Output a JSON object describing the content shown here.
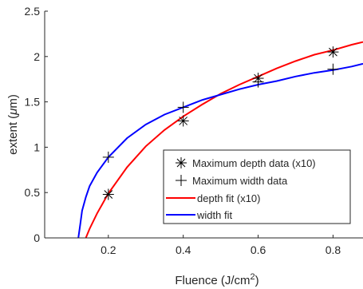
{
  "chart_data": {
    "type": "scatter",
    "xlabel": "Fluence (J/cm",
    "xlabel_sup": "2",
    "xlabel_close": ")",
    "ylabel_prefix": "extent (",
    "ylabel_mu": "μ",
    "ylabel_suffix": "m)",
    "xlim": [
      0.03,
      0.88
    ],
    "ylim": [
      0,
      2.5
    ],
    "x_ticks": [
      0.2,
      0.4,
      0.6,
      0.8
    ],
    "x_tick_labels": [
      "0.2",
      "0.4",
      "0.6",
      "0.8"
    ],
    "y_ticks": [
      0,
      0.5,
      1,
      1.5,
      2,
      2.5
    ],
    "y_tick_labels": [
      "0",
      "0.5",
      "1",
      "1.5",
      "2",
      "2.5"
    ],
    "grid": false,
    "legend_position": "bottom-right",
    "series": [
      {
        "name": "Maximum depth data (x10)",
        "kind": "markers",
        "marker": "asterisk",
        "color": "#000000",
        "x": [
          0.2,
          0.4,
          0.6,
          0.8
        ],
        "y": [
          0.48,
          1.29,
          1.76,
          2.05
        ]
      },
      {
        "name": "Maximum width data",
        "kind": "markers",
        "marker": "plus",
        "color": "#000000",
        "x": [
          0.2,
          0.4,
          0.6,
          0.8
        ],
        "y": [
          0.89,
          1.44,
          1.72,
          1.86
        ]
      },
      {
        "name": "depth fit (x10)",
        "kind": "line",
        "color": "#ff0000",
        "x": [
          0.14,
          0.15,
          0.17,
          0.2,
          0.25,
          0.3,
          0.35,
          0.4,
          0.45,
          0.5,
          0.55,
          0.6,
          0.65,
          0.7,
          0.75,
          0.8,
          0.85,
          0.88
        ],
        "y": [
          0.0,
          0.1,
          0.27,
          0.49,
          0.78,
          1.01,
          1.19,
          1.34,
          1.47,
          1.59,
          1.69,
          1.78,
          1.87,
          1.95,
          2.02,
          2.07,
          2.13,
          2.16
        ]
      },
      {
        "name": "width fit",
        "kind": "line",
        "color": "#0000ff",
        "x": [
          0.12,
          0.125,
          0.13,
          0.14,
          0.15,
          0.17,
          0.2,
          0.25,
          0.3,
          0.35,
          0.4,
          0.45,
          0.5,
          0.55,
          0.6,
          0.65,
          0.7,
          0.75,
          0.8,
          0.85,
          0.88
        ],
        "y": [
          0.0,
          0.15,
          0.3,
          0.45,
          0.57,
          0.72,
          0.89,
          1.1,
          1.25,
          1.36,
          1.44,
          1.52,
          1.58,
          1.64,
          1.69,
          1.73,
          1.78,
          1.82,
          1.85,
          1.89,
          1.92
        ]
      }
    ]
  }
}
